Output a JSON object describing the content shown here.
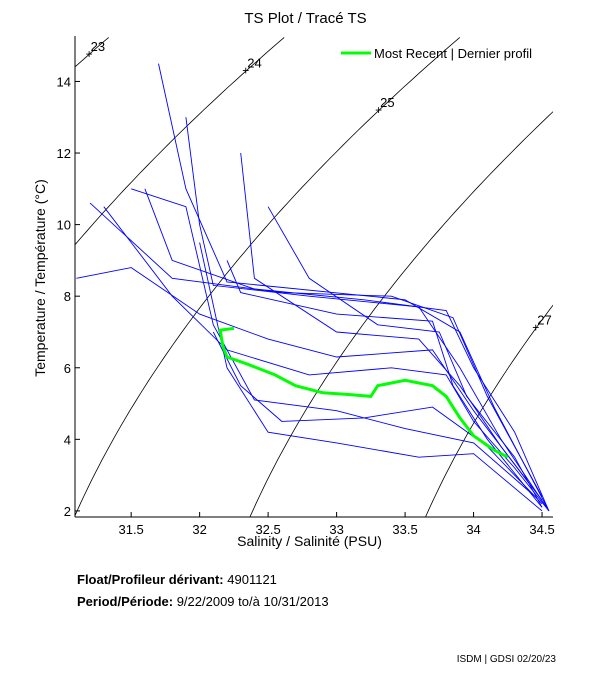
{
  "chart_data": {
    "type": "line",
    "title": "TS Plot / Tracé TS",
    "xlabel": "Salinity / Salinité (PSU)",
    "ylabel": "Temperature / Température (°C)",
    "xlim": [
      31.09,
      34.58
    ],
    "ylim": [
      1.83,
      15.27
    ],
    "xticks": [
      "31.5",
      "32",
      "32.5",
      "33",
      "33.5",
      "34",
      "34.5"
    ],
    "yticks": [
      "2",
      "4",
      "6",
      "8",
      "10",
      "12",
      "14"
    ],
    "legend": {
      "label": "Most Recent | Dernier profil",
      "placement": "top-right"
    },
    "density_contours": [
      {
        "sigma": 23,
        "label": "23"
      },
      {
        "sigma": 24,
        "label": "24"
      },
      {
        "sigma": 25,
        "label": "25"
      },
      {
        "sigma": 26,
        "label": ""
      },
      {
        "sigma": 27,
        "label": "27"
      }
    ],
    "profiles_color": "#0000ff",
    "recent_color": "#00ff00",
    "profiles": [
      [
        [
          31.9,
          13
        ],
        [
          32.0,
          10
        ],
        [
          32.1,
          8.3
        ],
        [
          32.8,
          8
        ],
        [
          33.6,
          7.7
        ],
        [
          33.9,
          6
        ],
        [
          34.2,
          4
        ],
        [
          34.55,
          2
        ]
      ],
      [
        [
          32.2,
          9
        ],
        [
          32.3,
          8.1
        ],
        [
          33,
          7.5
        ],
        [
          33.7,
          7.3
        ],
        [
          33.85,
          5.5
        ],
        [
          34.1,
          4
        ],
        [
          34.5,
          2.1
        ]
      ],
      [
        [
          31.3,
          10.5
        ],
        [
          31.8,
          8
        ],
        [
          32.2,
          6.5
        ],
        [
          32.8,
          5.8
        ],
        [
          33.4,
          6
        ],
        [
          33.8,
          5.8
        ],
        [
          34.0,
          4.5
        ],
        [
          34.3,
          3.2
        ],
        [
          34.55,
          2
        ]
      ],
      [
        [
          32.1,
          7
        ],
        [
          32.3,
          5.5
        ],
        [
          32.6,
          4.5
        ],
        [
          33.2,
          4.6
        ],
        [
          33.7,
          4.9
        ],
        [
          34.1,
          3.8
        ],
        [
          34.5,
          2.2
        ]
      ],
      [
        [
          31.6,
          11
        ],
        [
          31.8,
          9
        ],
        [
          32.4,
          8.2
        ],
        [
          33.2,
          7.9
        ],
        [
          33.8,
          7.6
        ],
        [
          34,
          6
        ],
        [
          34.3,
          4.2
        ],
        [
          34.55,
          2
        ]
      ],
      [
        [
          32.3,
          12
        ],
        [
          32.4,
          8.5
        ],
        [
          33.0,
          7
        ],
        [
          33.6,
          6.8
        ],
        [
          33.9,
          5.5
        ],
        [
          34.2,
          3.8
        ],
        [
          34.5,
          2.3
        ]
      ],
      [
        [
          31.1,
          8.5
        ],
        [
          31.5,
          8.8
        ],
        [
          32.0,
          7.5
        ],
        [
          32.5,
          6.8
        ],
        [
          33.0,
          6.3
        ],
        [
          33.7,
          6.5
        ],
        [
          34.0,
          4.8
        ],
        [
          34.4,
          2.8
        ]
      ],
      [
        [
          32.0,
          9.5
        ],
        [
          32.2,
          6
        ],
        [
          32.5,
          4.2
        ],
        [
          33,
          3.9
        ],
        [
          33.6,
          3.5
        ],
        [
          34,
          3.6
        ],
        [
          34.5,
          2
        ]
      ],
      [
        [
          31.7,
          14.5
        ],
        [
          31.9,
          11
        ],
        [
          32.2,
          8.4
        ],
        [
          33.5,
          7.9
        ],
        [
          33.9,
          7.0
        ],
        [
          34.15,
          4.9
        ],
        [
          34.55,
          2
        ]
      ],
      [
        [
          32.5,
          10.5
        ],
        [
          32.8,
          8.5
        ],
        [
          33.3,
          7.2
        ],
        [
          33.75,
          7.0
        ],
        [
          33.95,
          5.2
        ],
        [
          34.3,
          3.5
        ],
        [
          34.5,
          2.1
        ]
      ],
      [
        [
          31.5,
          11
        ],
        [
          31.9,
          10.5
        ],
        [
          32.1,
          7.2
        ],
        [
          32.4,
          5.1
        ],
        [
          33.0,
          4.8
        ],
        [
          33.5,
          4.3
        ],
        [
          34.0,
          3.9
        ],
        [
          34.45,
          2.4
        ]
      ],
      [
        [
          31.2,
          10.6
        ],
        [
          31.8,
          8.5
        ],
        [
          32.6,
          8.1
        ],
        [
          33.4,
          8.0
        ],
        [
          33.85,
          7.4
        ],
        [
          34.1,
          5.2
        ],
        [
          34.5,
          2.4
        ]
      ]
    ],
    "recent_profile": [
      [
        32.25,
        7.1
      ],
      [
        32.15,
        7.05
      ],
      [
        32.17,
        6.6
      ],
      [
        32.2,
        6.3
      ],
      [
        32.35,
        6.1
      ],
      [
        32.55,
        5.8
      ],
      [
        32.7,
        5.5
      ],
      [
        32.9,
        5.3
      ],
      [
        33.1,
        5.25
      ],
      [
        33.25,
        5.2
      ],
      [
        33.3,
        5.5
      ],
      [
        33.5,
        5.65
      ],
      [
        33.7,
        5.5
      ],
      [
        33.8,
        5.2
      ],
      [
        33.9,
        4.6
      ],
      [
        34.0,
        4.1
      ],
      [
        34.15,
        3.7
      ],
      [
        34.25,
        3.5
      ]
    ]
  },
  "info": {
    "float_label": "Float/Profileur dérivant:",
    "float_id": "4901121",
    "period_label": "Period/Période:",
    "period_start": "9/22/2009",
    "period_to": "to/à",
    "period_end": "10/31/2013",
    "credit": "ISDM | GDSI  02/20/23"
  }
}
